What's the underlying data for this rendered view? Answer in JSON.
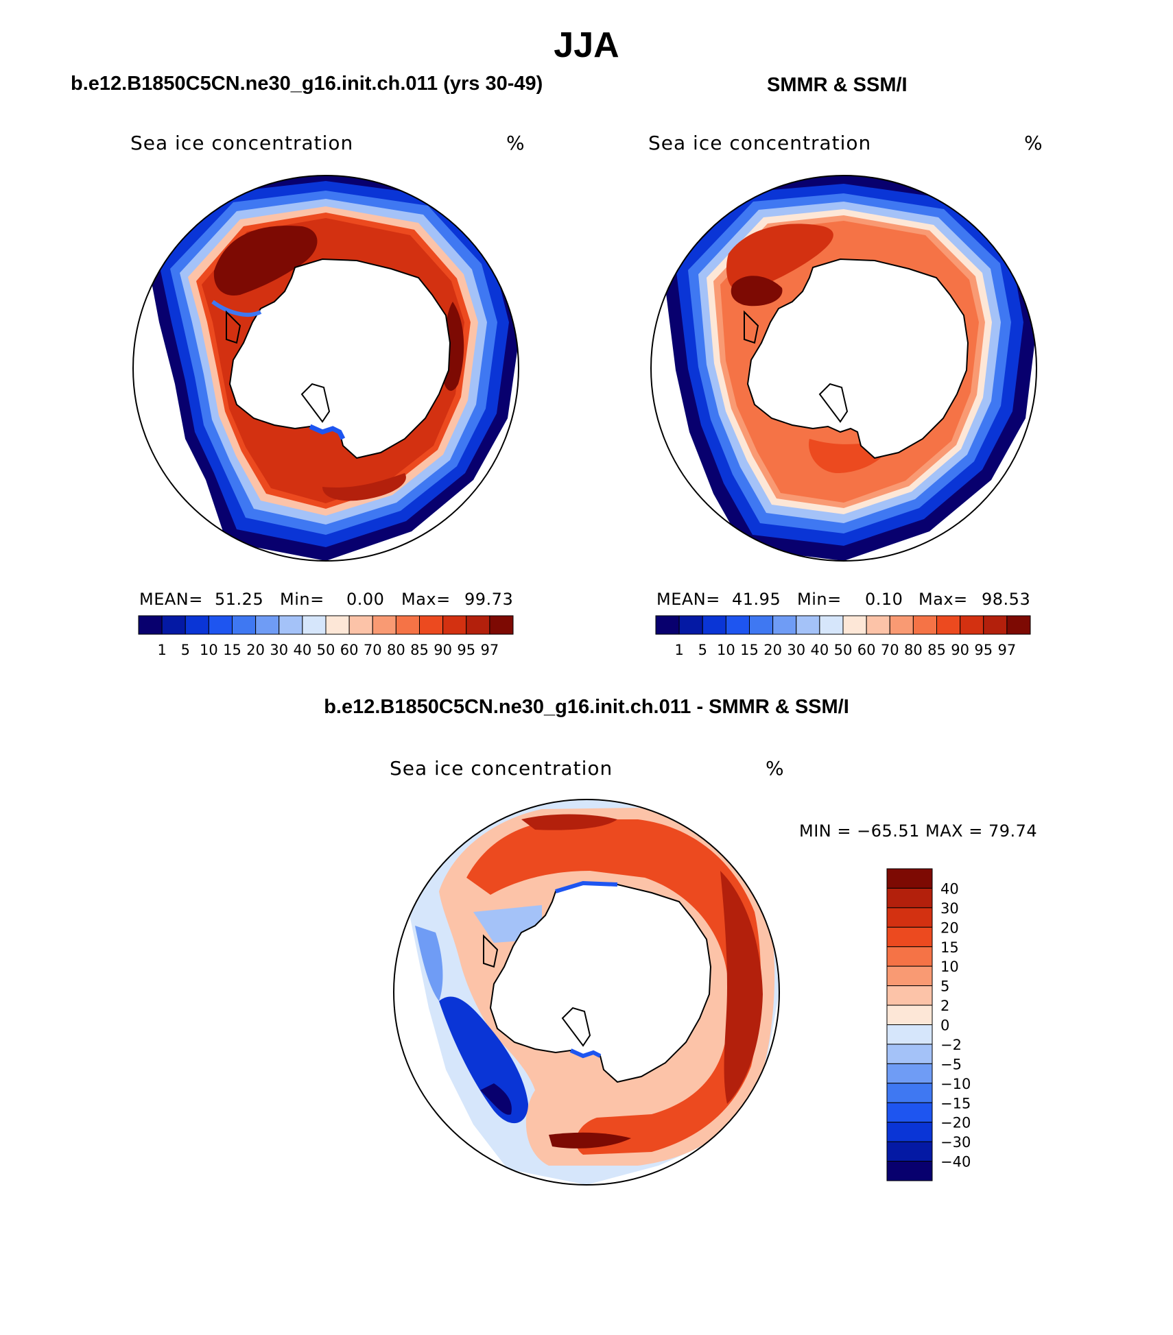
{
  "figure": {
    "title": "JJA",
    "panels": [
      {
        "title": "b.e12.B1850C5CN.ne30_g16.init.ch.011 (yrs 30-49)",
        "variable": "Sea ice concentration",
        "units": "%",
        "mean_label": "MEAN=",
        "mean": "51.25",
        "min_label": "Min=",
        "min": "0.00",
        "max_label": "Max=",
        "max": "99.73"
      },
      {
        "title": "SMMR & SSM/I",
        "variable": "Sea ice concentration",
        "units": "%",
        "mean_label": "MEAN=",
        "mean": "41.95",
        "min_label": "Min=",
        "min": "0.10",
        "max_label": "Max=",
        "max": "98.53"
      },
      {
        "title": "b.e12.B1850C5CN.ne30_g16.init.ch.011 - SMMR & SSM/I",
        "variable": "Sea ice concentration",
        "units": "%",
        "minmax_text": "MIN = −65.51  MAX =   79.74"
      }
    ]
  },
  "colorbar_abs": {
    "labels": [
      "1",
      "5",
      "10",
      "15",
      "20",
      "30",
      "40",
      "50",
      "60",
      "70",
      "80",
      "85",
      "90",
      "95",
      "97"
    ],
    "colors": [
      "#08006e",
      "#0419a4",
      "#0a35d6",
      "#1e55f0",
      "#3f78f2",
      "#6f9cf5",
      "#a4c2f8",
      "#d6e6fb",
      "#fde7d7",
      "#fcc3a8",
      "#f99a73",
      "#f57346",
      "#ec4a1f",
      "#d33111",
      "#b3200c",
      "#7d0a03"
    ]
  },
  "colorbar_diff": {
    "labels": [
      "40",
      "30",
      "20",
      "15",
      "10",
      "5",
      "2",
      "0",
      "−2",
      "−5",
      "−10",
      "−15",
      "−20",
      "−30",
      "−40"
    ],
    "colors": [
      "#7d0a03",
      "#b3200c",
      "#d33111",
      "#ec4a1f",
      "#f57346",
      "#f99a73",
      "#fcc3a8",
      "#fde7d7",
      "#d6e6fb",
      "#a4c2f8",
      "#6f9cf5",
      "#3f78f2",
      "#1e55f0",
      "#0a35d6",
      "#0419a4",
      "#08006e"
    ]
  }
}
